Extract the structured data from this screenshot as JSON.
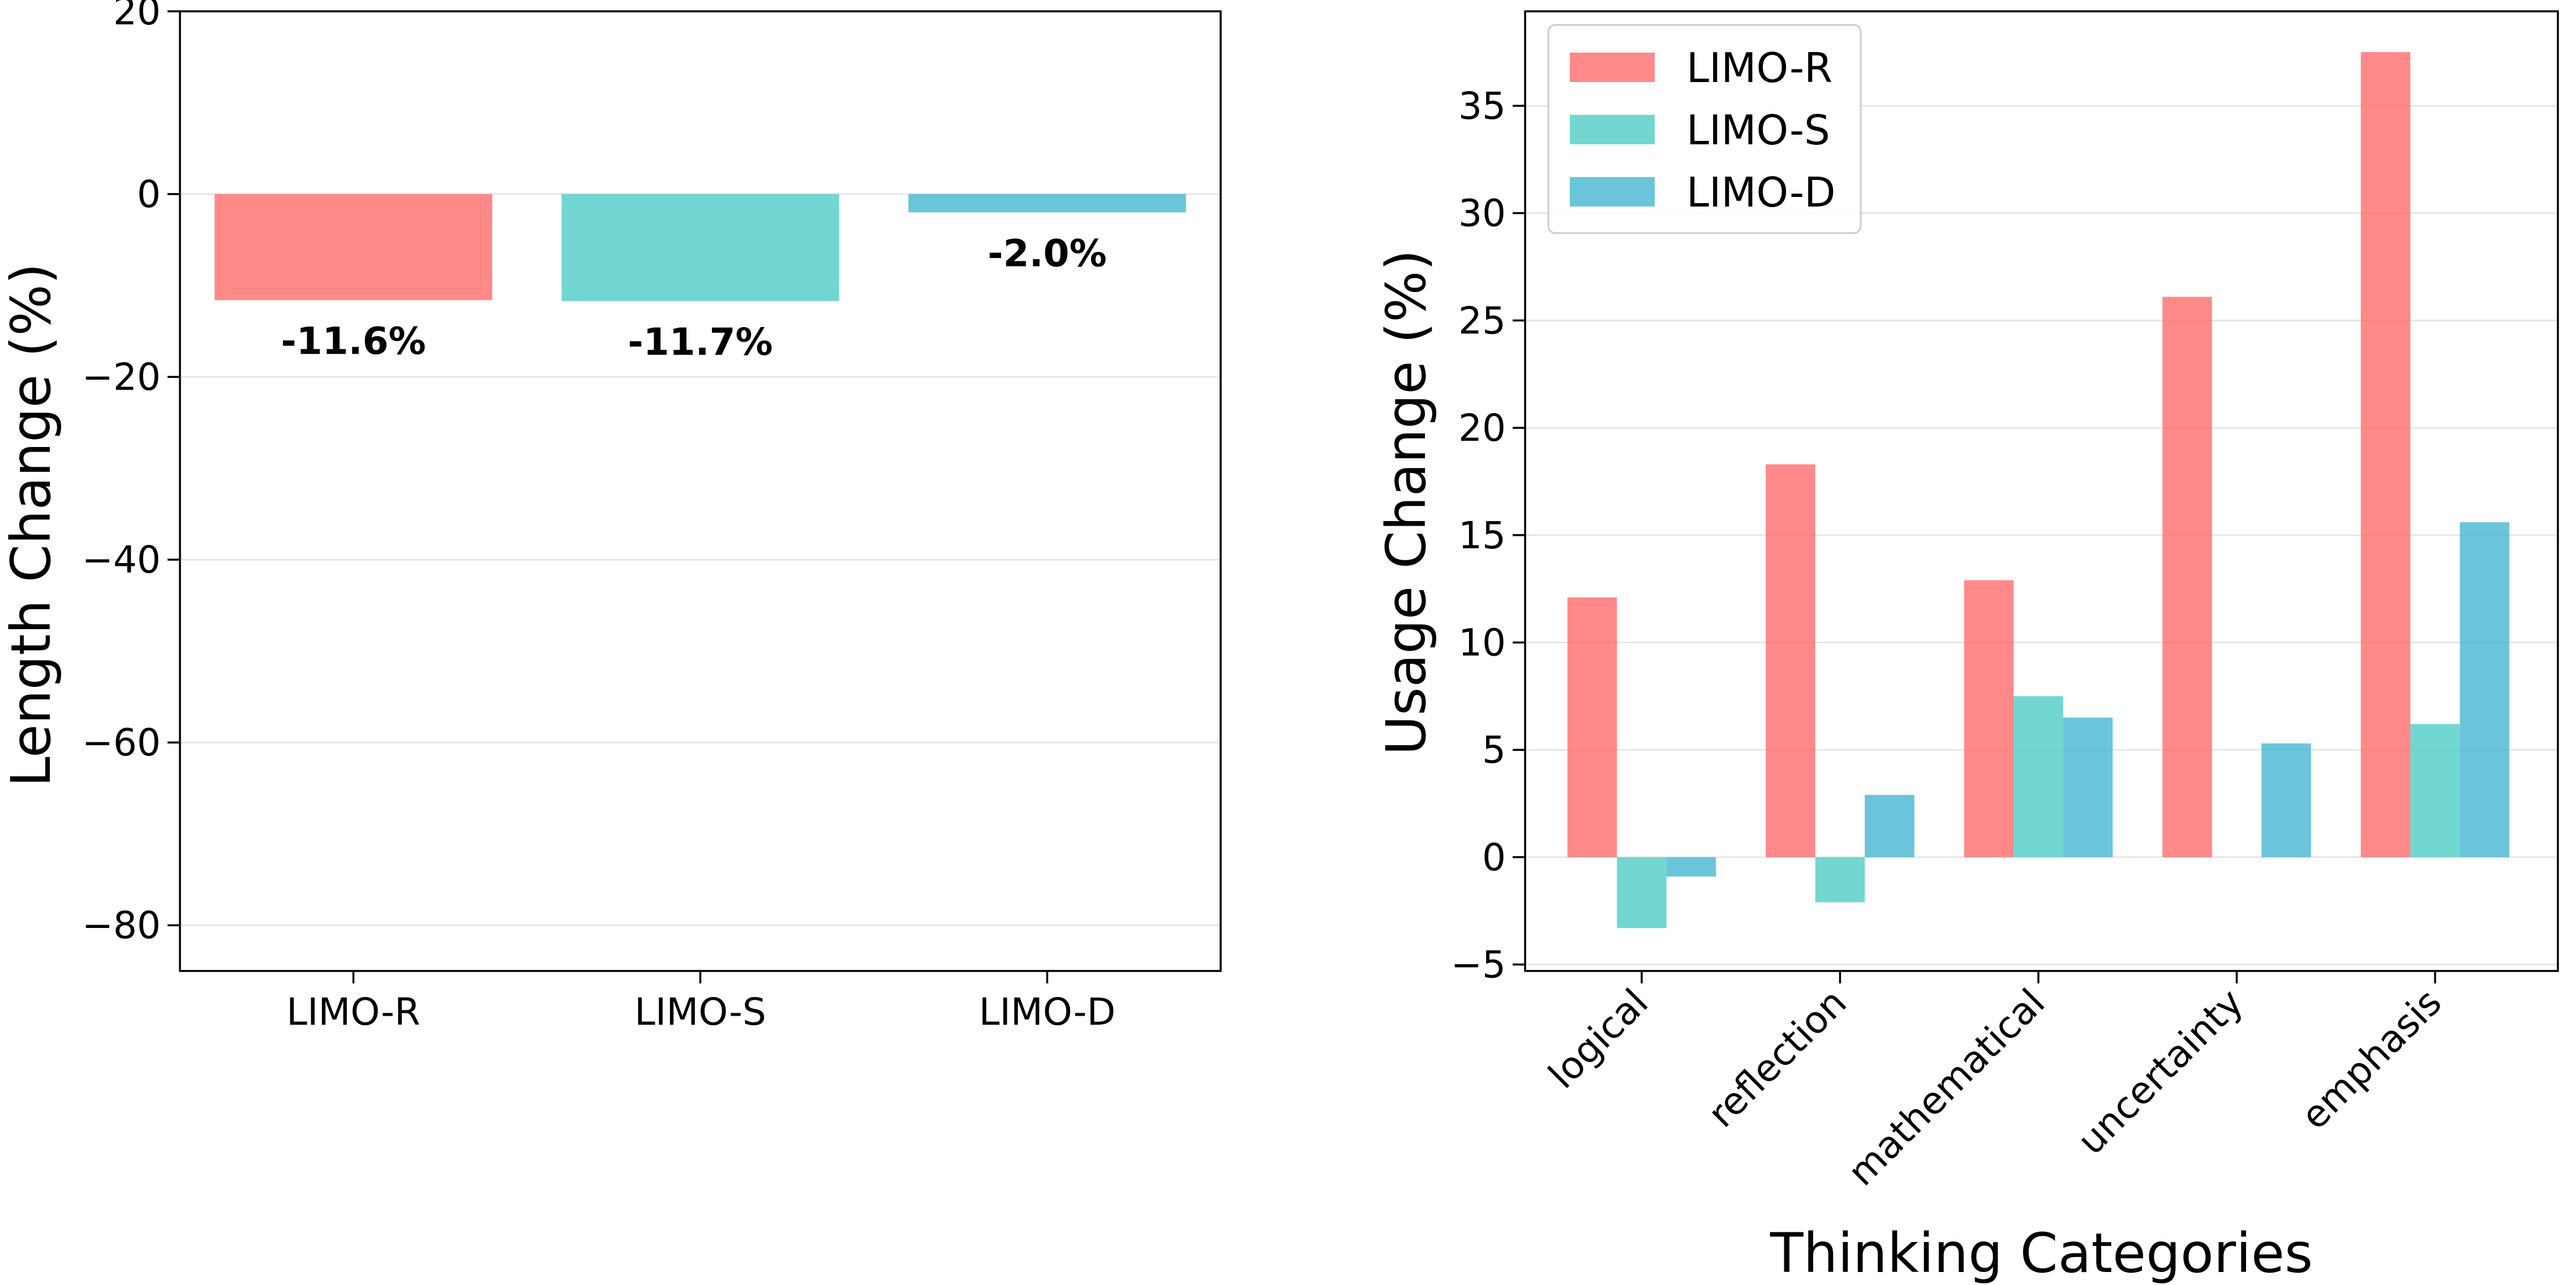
{
  "colors": {
    "LIMO-R": "#FF6B6B",
    "LIMO-S": "#4ECDC4",
    "LIMO-D": "#45B7D1"
  },
  "chart_data": [
    {
      "type": "bar",
      "title": "",
      "categories": [
        "LIMO-R",
        "LIMO-S",
        "LIMO-D"
      ],
      "values": [
        -11.6,
        -11.7,
        -2.0
      ],
      "value_labels": [
        "-11.6%",
        "-11.7%",
        "-2.0%"
      ],
      "xlabel": "",
      "ylabel": "Length Change (%)",
      "ylim": [
        -85,
        20
      ],
      "yticks": [
        20,
        0,
        -20,
        -40,
        -60,
        -80
      ],
      "ytick_labels": [
        "20",
        "0",
        "−20",
        "−40",
        "−60",
        "−80"
      ],
      "grid": "y"
    },
    {
      "type": "bar",
      "title": "",
      "categories": [
        "logical",
        "reflection",
        "mathematical",
        "uncertainty",
        "emphasis"
      ],
      "series": [
        {
          "name": "LIMO-R",
          "values": [
            12.1,
            18.3,
            12.9,
            26.1,
            37.5
          ]
        },
        {
          "name": "LIMO-S",
          "values": [
            -3.3,
            -2.1,
            7.5,
            0.0,
            6.2
          ]
        },
        {
          "name": "LIMO-D",
          "values": [
            -0.9,
            2.9,
            6.5,
            5.3,
            15.6
          ]
        }
      ],
      "xlabel": "Thinking Categories",
      "ylabel": "Usage Change (%)",
      "ylim": [
        -5.3,
        39.4
      ],
      "yticks": [
        35,
        30,
        25,
        20,
        15,
        10,
        5,
        0,
        -5
      ],
      "ytick_labels": [
        "35",
        "30",
        "25",
        "20",
        "15",
        "10",
        "5",
        "0",
        "−5"
      ],
      "legend": [
        "LIMO-R",
        "LIMO-S",
        "LIMO-D"
      ],
      "legend_position": "top-left",
      "grid": "y"
    }
  ]
}
